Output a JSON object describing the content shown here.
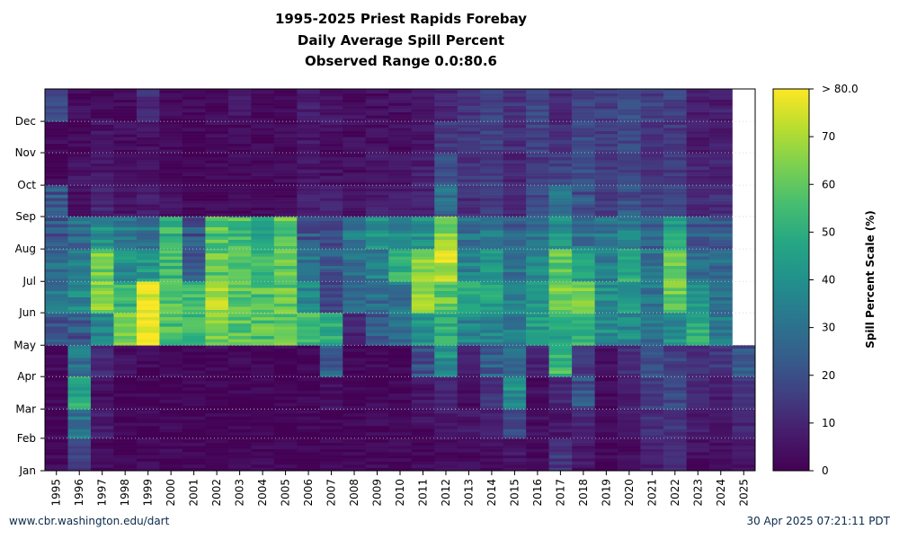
{
  "chart_data": {
    "type": "heatmap",
    "title_lines": [
      "1995-2025 Priest Rapids Forebay",
      "Daily Average Spill Percent",
      "Observed Range 0.0:80.6"
    ],
    "x_categories": [
      "1995",
      "1996",
      "1997",
      "1998",
      "1999",
      "2000",
      "2001",
      "2002",
      "2003",
      "2004",
      "2005",
      "2006",
      "2007",
      "2008",
      "2009",
      "2010",
      "2011",
      "2012",
      "2013",
      "2014",
      "2015",
      "2016",
      "2017",
      "2018",
      "2019",
      "2020",
      "2021",
      "2022",
      "2023",
      "2024",
      "2025"
    ],
    "y_ticks": [
      "Jan",
      "Feb",
      "Mar",
      "Apr",
      "May",
      "Jun",
      "Jul",
      "Aug",
      "Sep",
      "Oct",
      "Nov",
      "Dec"
    ],
    "colorbar": {
      "label": "Spill Percent Scale (%)",
      "ticks": [
        "0",
        "10",
        "20",
        "30",
        "40",
        "50",
        "60",
        "70",
        "> 80.0"
      ],
      "range": [
        0,
        80
      ],
      "colormap": "viridis"
    },
    "grid": "dotted horizontal at month ticks",
    "monthly_spill_percent": {
      "1995": [
        2,
        2,
        2,
        2,
        22,
        30,
        28,
        22,
        22,
        2,
        2,
        18
      ],
      "1996": [
        16,
        30,
        48,
        30,
        22,
        38,
        36,
        28,
        4,
        6,
        2,
        3
      ],
      "1997": [
        2,
        8,
        4,
        12,
        38,
        66,
        62,
        40,
        10,
        6,
        5,
        4
      ],
      "1998": [
        1,
        1,
        1,
        4,
        62,
        52,
        40,
        34,
        6,
        4,
        4,
        2
      ],
      "1999": [
        2,
        2,
        2,
        2,
        80,
        78,
        42,
        32,
        8,
        4,
        4,
        12
      ],
      "2000": [
        2,
        2,
        1,
        2,
        56,
        56,
        54,
        52,
        4,
        3,
        2,
        2
      ],
      "2001": [
        1,
        1,
        1,
        1,
        55,
        55,
        22,
        22,
        2,
        2,
        1,
        1
      ],
      "2002": [
        1,
        1,
        1,
        3,
        64,
        70,
        60,
        58,
        2,
        2,
        2,
        2
      ],
      "2003": [
        1,
        1,
        1,
        2,
        58,
        60,
        58,
        56,
        3,
        3,
        2,
        6
      ],
      "2004": [
        1,
        1,
        1,
        1,
        58,
        58,
        52,
        50,
        2,
        2,
        2,
        2
      ],
      "2005": [
        1,
        1,
        1,
        1,
        60,
        60,
        60,
        60,
        2,
        2,
        2,
        2
      ],
      "2006": [
        1,
        1,
        1,
        2,
        56,
        38,
        32,
        22,
        8,
        6,
        6,
        8
      ],
      "2007": [
        1,
        2,
        4,
        24,
        50,
        18,
        22,
        18,
        10,
        4,
        4,
        6
      ],
      "2008": [
        1,
        1,
        1,
        1,
        10,
        28,
        30,
        32,
        6,
        4,
        4,
        4
      ],
      "2009": [
        2,
        3,
        2,
        2,
        24,
        28,
        34,
        40,
        8,
        6,
        4,
        4
      ],
      "2010": [
        1,
        1,
        1,
        1,
        28,
        30,
        50,
        36,
        8,
        6,
        4,
        4
      ],
      "2011": [
        2,
        4,
        6,
        22,
        42,
        68,
        66,
        40,
        10,
        8,
        6,
        6
      ],
      "2012": [
        4,
        8,
        10,
        40,
        48,
        60,
        72,
        64,
        28,
        20,
        14,
        10
      ],
      "2013": [
        2,
        6,
        4,
        8,
        36,
        46,
        36,
        30,
        12,
        14,
        14,
        14
      ],
      "2014": [
        4,
        10,
        14,
        24,
        36,
        46,
        40,
        32,
        14,
        16,
        16,
        16
      ],
      "2015": [
        6,
        18,
        40,
        26,
        32,
        34,
        30,
        24,
        10,
        10,
        12,
        14
      ],
      "2016": [
        2,
        4,
        4,
        10,
        44,
        40,
        38,
        30,
        18,
        14,
        16,
        18
      ],
      "2017": [
        14,
        6,
        10,
        54,
        48,
        64,
        60,
        40,
        28,
        16,
        12,
        10
      ],
      "2018": [
        6,
        10,
        22,
        14,
        52,
        62,
        44,
        30,
        22,
        20,
        18,
        16
      ],
      "2019": [
        2,
        2,
        2,
        4,
        40,
        38,
        34,
        32,
        16,
        14,
        16,
        16
      ],
      "2020": [
        4,
        6,
        8,
        12,
        38,
        44,
        48,
        34,
        22,
        18,
        18,
        20
      ],
      "2021": [
        8,
        12,
        16,
        20,
        30,
        32,
        30,
        26,
        16,
        14,
        14,
        16
      ],
      "2022": [
        10,
        14,
        18,
        16,
        40,
        62,
        60,
        46,
        18,
        14,
        14,
        16
      ],
      "2023": [
        4,
        8,
        10,
        12,
        50,
        40,
        30,
        24,
        12,
        10,
        8,
        8
      ],
      "2024": [
        4,
        6,
        8,
        14,
        34,
        30,
        28,
        24,
        12,
        10,
        8,
        8
      ],
      "2025": [
        6,
        10,
        14,
        22,
        null,
        null,
        null,
        null,
        null,
        null,
        null,
        null
      ]
    }
  },
  "footer": {
    "left": "www.cbr.washington.edu/dart",
    "right": "30 Apr 2025 07:21:11 PDT"
  }
}
